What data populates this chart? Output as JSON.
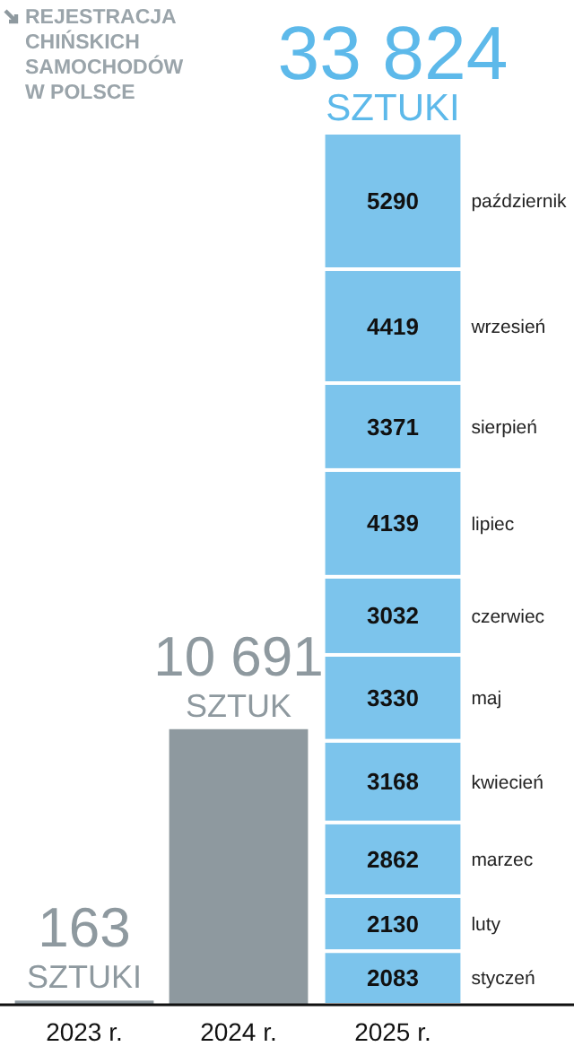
{
  "chart_data": {
    "type": "bar",
    "title": "REJESTRACJA CHIŃSKICH SAMOCHODÓW W POLSCE",
    "categories": [
      "2023 r.",
      "2024 r.",
      "2025 r."
    ],
    "stacked": true,
    "tick_labels": "x",
    "totals": [
      "163 SZTUKI",
      "10 691 SZTUK",
      "33 824 SZTUKI"
    ],
    "series": [
      {
        "color": "#8e999f",
        "values": [
          163,
          10691,
          null
        ]
      },
      {
        "name": "styczeń",
        "color": "#7cc4ec",
        "values": [
          null,
          null,
          2083
        ],
        "value_labels": [
          null,
          null,
          "2083"
        ]
      },
      {
        "name": "luty",
        "color": "#7cc4ec",
        "values": [
          null,
          null,
          2130
        ],
        "value_labels": [
          null,
          null,
          "2130"
        ]
      },
      {
        "name": "marzec",
        "color": "#7cc4ec",
        "values": [
          null,
          null,
          2862
        ],
        "value_labels": [
          null,
          null,
          "2862"
        ]
      },
      {
        "name": "kwiecień",
        "color": "#7cc4ec",
        "values": [
          null,
          null,
          3168
        ],
        "value_labels": [
          null,
          null,
          "3168"
        ]
      },
      {
        "name": "maj",
        "color": "#7cc4ec",
        "values": [
          null,
          null,
          3330
        ],
        "value_labels": [
          null,
          null,
          "3330"
        ]
      },
      {
        "name": "czerwiec",
        "color": "#7cc4ec",
        "values": [
          null,
          null,
          3032
        ],
        "value_labels": [
          null,
          null,
          "3032"
        ]
      },
      {
        "name": "lipiec",
        "color": "#7cc4ec",
        "values": [
          null,
          null,
          4139
        ],
        "value_labels": [
          null,
          null,
          "4139"
        ]
      },
      {
        "name": "sierpień",
        "color": "#7cc4ec",
        "values": [
          null,
          null,
          3371
        ],
        "value_labels": [
          null,
          null,
          "3371"
        ]
      },
      {
        "name": "wrzesień",
        "color": "#7cc4ec",
        "values": [
          null,
          null,
          4419
        ],
        "value_labels": [
          null,
          null,
          "4419"
        ]
      },
      {
        "name": "październik",
        "color": "#7cc4ec",
        "values": [
          null,
          null,
          5290
        ],
        "value_labels": [
          null,
          null,
          "5290"
        ]
      }
    ]
  }
}
